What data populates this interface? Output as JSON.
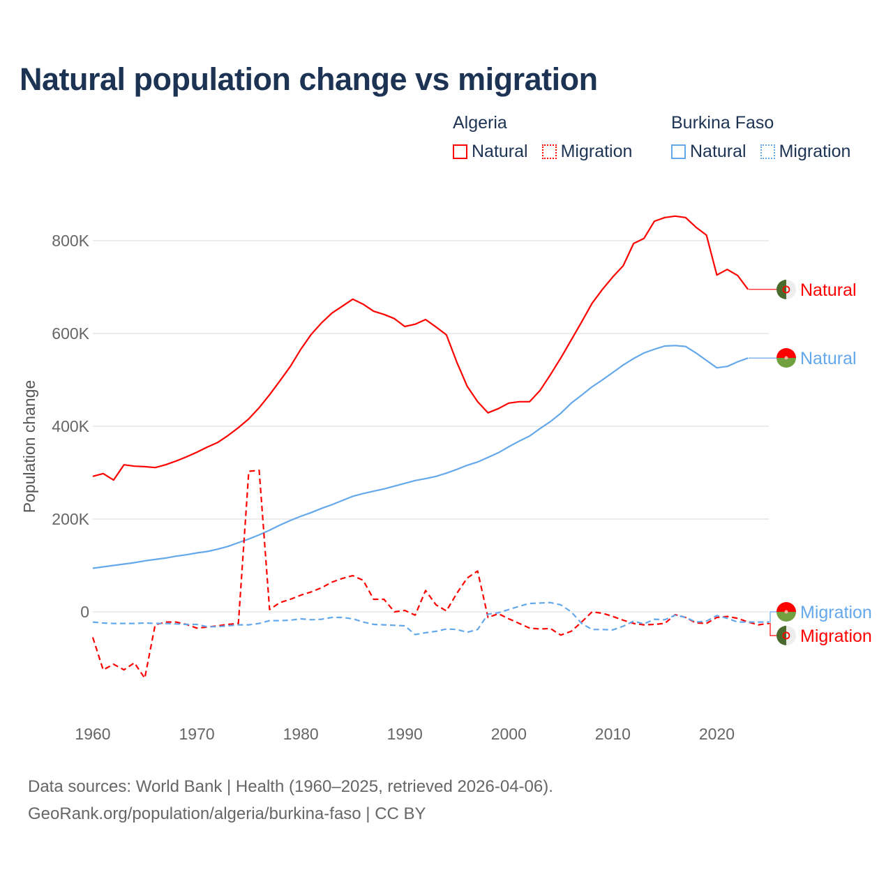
{
  "chart_data": {
    "type": "line",
    "title": "Natural population change vs migration",
    "ylabel": "Population change",
    "xlabel": "",
    "xlim": [
      1960,
      2025
    ],
    "ylim": [
      -200000,
      900000
    ],
    "x_ticks": [
      "1960",
      "1970",
      "1980",
      "1990",
      "2000",
      "2010",
      "2020"
    ],
    "y_ticks": [
      {
        "value": 0,
        "label": "0"
      },
      {
        "value": 200000,
        "label": "200K"
      },
      {
        "value": 400000,
        "label": "400K"
      },
      {
        "value": 600000,
        "label": "600K"
      },
      {
        "value": 800000,
        "label": "800K"
      }
    ],
    "grid": true,
    "legend_groups": [
      {
        "country": "Algeria",
        "items": [
          "Natural",
          "Migration"
        ]
      },
      {
        "country": "Burkina Faso",
        "items": [
          "Natural",
          "Migration"
        ]
      }
    ],
    "series": [
      {
        "name": "Natural",
        "country": "Algeria",
        "color": "#ff0000",
        "dashed": false,
        "start": 1960,
        "values": [
          292,
          298,
          284,
          317,
          314,
          313,
          311,
          317,
          325,
          334,
          344,
          355,
          365,
          380,
          397,
          416,
          440,
          468,
          498,
          529,
          566,
          598,
          623,
          644,
          659,
          674,
          663,
          648,
          641,
          632,
          615,
          620,
          630,
          614,
          597,
          538,
          486,
          453,
          429,
          438,
          450,
          453,
          453,
          477,
          511,
          547,
          586,
          625,
          665,
          695,
          722,
          746,
          794,
          805,
          842,
          850,
          853,
          850,
          829,
          812,
          726,
          738,
          725,
          695
        ]
      },
      {
        "name": "Natural",
        "country": "Burkina Faso",
        "color": "#64a8ec",
        "dashed": false,
        "start": 1960,
        "values": [
          94,
          97,
          100,
          103,
          106,
          110,
          113,
          116,
          120,
          123,
          127,
          130,
          135,
          141,
          149,
          157,
          166,
          176,
          187,
          197,
          206,
          214,
          223,
          231,
          240,
          249,
          255,
          260,
          265,
          271,
          277,
          283,
          287,
          292,
          299,
          307,
          316,
          323,
          333,
          343,
          356,
          368,
          379,
          395,
          410,
          428,
          450,
          467,
          485,
          500,
          516,
          532,
          546,
          558,
          566,
          573,
          574,
          572,
          558,
          542,
          526,
          529,
          539,
          547
        ]
      },
      {
        "name": "Migration",
        "country": "Algeria",
        "color": "#ff0000",
        "dashed": true,
        "start": 1960,
        "values": [
          -55,
          -125,
          -113,
          -125,
          -110,
          -143,
          -28,
          -22,
          -22,
          -27,
          -35,
          -33,
          -30,
          -27,
          -25,
          303,
          305,
          5,
          20,
          27,
          36,
          43,
          52,
          64,
          72,
          78,
          68,
          27,
          27,
          0,
          3,
          -7,
          46,
          15,
          2,
          40,
          73,
          88,
          -12,
          -4,
          -15,
          -25,
          -35,
          -37,
          -36,
          -50,
          -42,
          -22,
          0,
          -3,
          -10,
          -18,
          -25,
          -28,
          -27,
          -25,
          -6,
          -12,
          -24,
          -25,
          -12,
          -10,
          -14,
          -22,
          -28,
          -25
        ]
      },
      {
        "name": "Migration",
        "country": "Burkina Faso",
        "color": "#64a8ec",
        "dashed": true,
        "start": 1960,
        "values": [
          -22,
          -24,
          -25,
          -25,
          -25,
          -24,
          -25,
          -25,
          -26,
          -27,
          -27,
          -32,
          -32,
          -30,
          -28,
          -28,
          -25,
          -19,
          -19,
          -18,
          -15,
          -17,
          -16,
          -12,
          -12,
          -15,
          -22,
          -27,
          -28,
          -29,
          -30,
          -49,
          -45,
          -42,
          -37,
          -38,
          -44,
          -38,
          -5,
          -2,
          5,
          12,
          18,
          19,
          20,
          15,
          0,
          -25,
          -38,
          -38,
          -39,
          -31,
          -20,
          -26,
          -16,
          -17,
          -7,
          -12,
          -22,
          -20,
          -8,
          -14,
          -22,
          -22,
          -22,
          -22
        ]
      }
    ],
    "value_unit": "thousands",
    "end_labels": [
      {
        "text": "Natural",
        "country": "Algeria",
        "color": "#ff0000"
      },
      {
        "text": "Natural",
        "country": "Burkina Faso",
        "color": "#64a8ec"
      },
      {
        "text": "Migration",
        "country": "Burkina Faso",
        "color": "#64a8ec"
      },
      {
        "text": "Migration",
        "country": "Algeria",
        "color": "#ff0000"
      }
    ]
  },
  "source": {
    "line1": "Data sources: World Bank | Health (1960–2025, retrieved 2026-04-06).",
    "line2": "GeoRank.org/population/algeria/burkina-faso | CC BY"
  }
}
